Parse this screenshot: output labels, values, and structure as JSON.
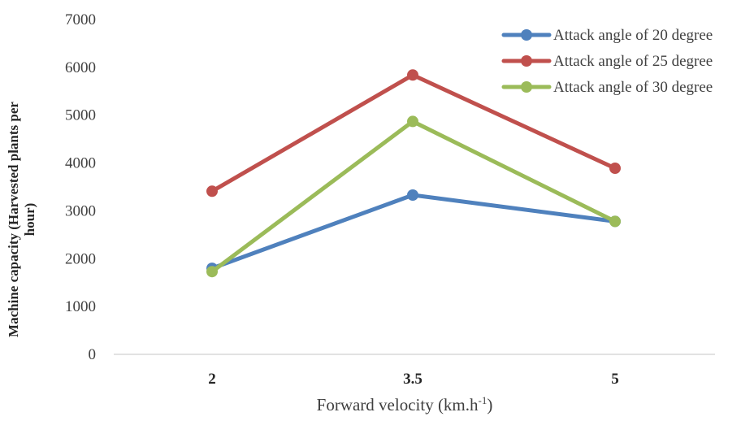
{
  "chart_data": {
    "type": "line",
    "x": [
      "2",
      "3.5",
      "5"
    ],
    "ylim": [
      0,
      7000
    ],
    "yticks": [
      0,
      1000,
      2000,
      3000,
      4000,
      5000,
      6000,
      7000
    ],
    "ylabel_line1": "Machine capacity (Harvested plants per",
    "ylabel_line2": "hour)",
    "xlabel": "Forward velocity (km.h",
    "xlabel_sup": "-1",
    "xlabel_close": ")",
    "grid": false,
    "legend_position": "top-right",
    "series": [
      {
        "name": "Attack angle of 20 degree",
        "color": "#4F81BD",
        "values": [
          1800,
          3330,
          2780
        ]
      },
      {
        "name": "Attack angle of 25 degree",
        "color": "#C0504D",
        "values": [
          3410,
          5840,
          3890
        ]
      },
      {
        "name": "Attack angle of 30 degree",
        "color": "#9BBB59",
        "values": [
          1730,
          4870,
          2780
        ]
      }
    ]
  }
}
